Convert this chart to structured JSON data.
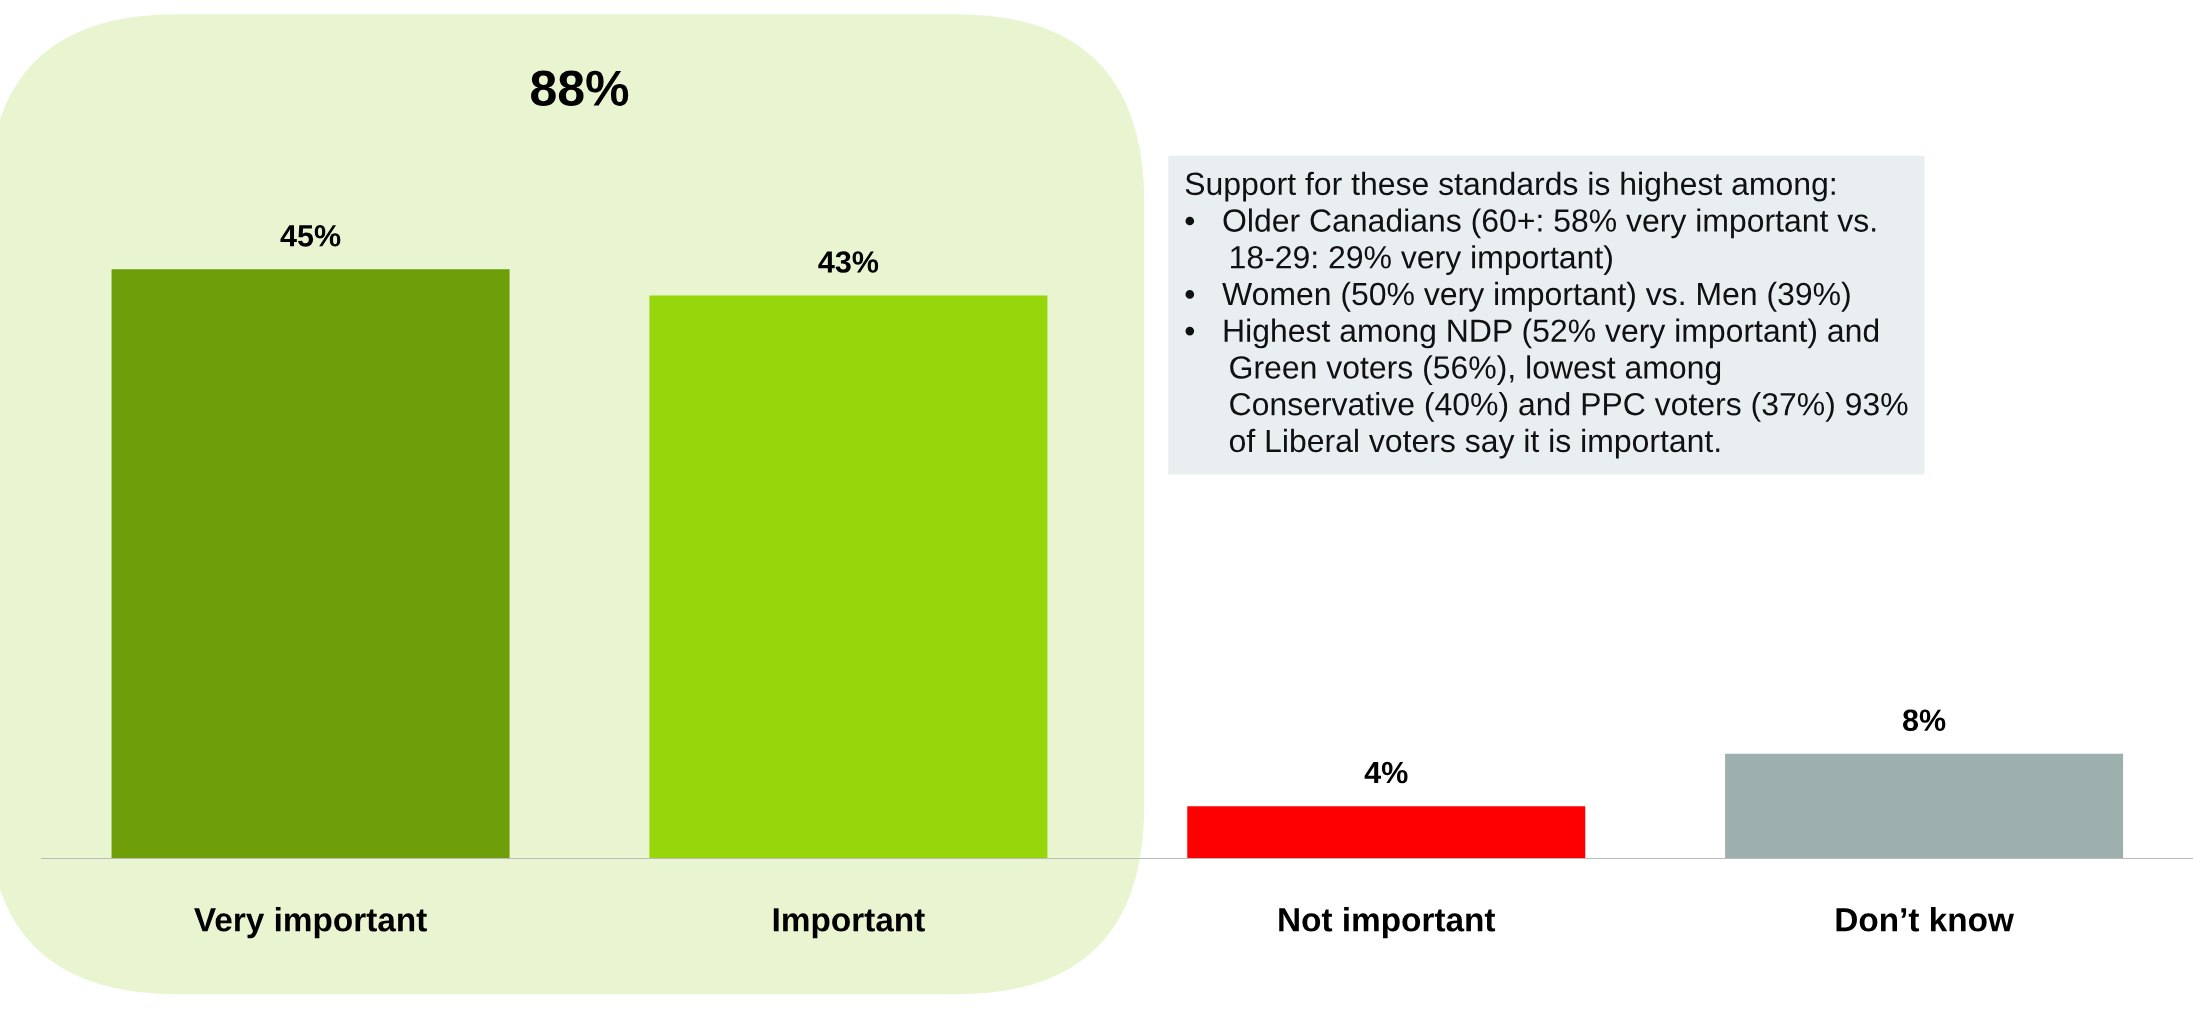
{
  "chart_data": {
    "type": "bar",
    "categories": [
      "Very important",
      "Important",
      "Not important",
      "Don’t know"
    ],
    "values": [
      45,
      43,
      4,
      8
    ],
    "colors": [
      "#6e9e0a",
      "#98d60c",
      "#ff0000",
      "#9eb0ae"
    ],
    "value_labels": [
      "45%",
      "43%",
      "4%",
      "8%"
    ],
    "grid": false,
    "legend": false,
    "tick_labels": "x",
    "bands": [
      {
        "axis": "x",
        "from": "Very important",
        "to": "Important",
        "label": "88%",
        "color": "#e8f5d0"
      }
    ],
    "annotations": [
      "Support for these standards is highest among:\n•   Older Canadians (60+: 58% very important vs.\n     18-29: 29% very important)\n•   Women (50% very important) vs. Men (39%)\n•   Highest among NDP (52% very important) and\n     Green voters (56%), lowest among\n     Conservative (40%) and PPC voters (37%) 93%\n     of Liberal voters say it is important."
    ]
  }
}
